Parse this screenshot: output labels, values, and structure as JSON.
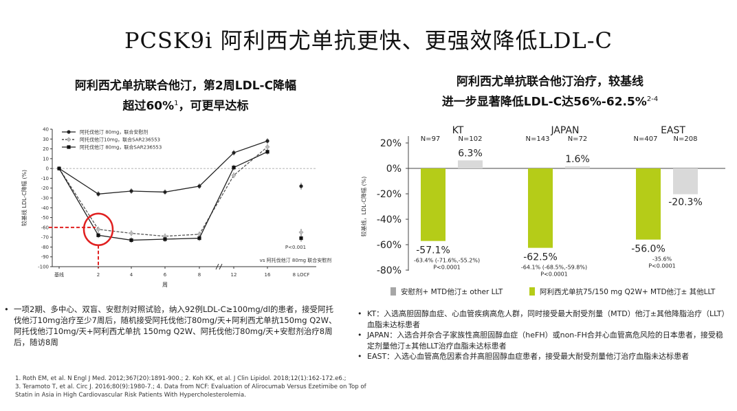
{
  "main_title": "PCSK9i 阿利西尤单抗更快、更强效降低LDL-C",
  "left": {
    "title_line1": "阿利西尤单抗联合他汀，第2周LDL-C降幅",
    "title_line2": "超过60%",
    "title_sup": "1",
    "title_line2_end": "，可更早达标",
    "bullet": "一项2期、多中心、双盲、安慰剂对照试验，纳入92例LDL-C≥100mg/dl的患者，接受阿托伐他汀10mg治疗至少7周后，随机接受阿托伐他汀80mg/天+阿利西尤单抗150mg Q2W、阿托伐他汀10mg/天+阿利西尤单抗 150mg Q2W、阿托伐他汀80mg/天+安慰剂治疗8周后，随访8周"
  },
  "right": {
    "title_line1": "阿利西尤单抗联合他汀治疗，较基线",
    "title_line2": "进一步显著降低LDL-C达56%-62.5%",
    "title_sup": "2-4",
    "bullets": [
      "KT：入选高胆固醇血症、心血管疾病高危人群，同时接受最大耐受剂量（MTD）他汀±其他降脂治疗（LLT）血脂未达标患者",
      "JAPAN：入选合并杂合子家族性高胆固醇血症（heFH）或non-FH合并心血管高危风险的日本患者，接受稳定剂量他汀±其他LLT治疗血脂未达标患者",
      "EAST：入选心血管高危因素合并高胆固醇血症患者，接受最大耐受剂量他汀治疗血脂未达标患者"
    ]
  },
  "references": [
    "1. Roth EM, et al. N Engl J Med. 2012;367(20):1891-900.; 2. Koh KK, et al. J Clin Lipidol. 2018;12(1):162-172.e6.;",
    "3. Teramoto T, et al. Circ J. 2016;80(9):1980-7.;  4. Data from NCF: Evaluation of Alirocumab Versus Ezetimibe on Top of",
    "Statin in Asia in High Cardiovascular Risk Patients With Hypercholesterolemia."
  ],
  "colors": {
    "alirocumab": "#b5cc18",
    "placebo": "#d9d9d9",
    "highlight": "#e02020"
  },
  "chart_data": [
    {
      "type": "line",
      "ylabel": "较基线 LDL-C降幅 (%)",
      "xlabel": "周",
      "ylim": [
        -100,
        40
      ],
      "yticks": [
        40,
        30,
        20,
        10,
        0,
        -10,
        -20,
        -30,
        -40,
        -50,
        -60,
        -70,
        -80,
        -90,
        -100
      ],
      "x": [
        "基线",
        "2",
        "4",
        "6",
        "8",
        "12",
        "16"
      ],
      "x_extra": "8 LOCF",
      "series": [
        {
          "name": "阿托伐他汀 80mg，联合安慰剂",
          "style": "solid-circle",
          "values": [
            0,
            -26,
            -23,
            -24,
            -18,
            16,
            28
          ],
          "locf": -18
        },
        {
          "name": "阿托伐他汀10mg，联合SAR236553",
          "style": "dashed-diamond",
          "values": [
            0,
            -62,
            -66,
            -69,
            -67,
            -7,
            22
          ],
          "locf": -65
        },
        {
          "name": "阿托伐他汀 80mg，联合SAR236553",
          "style": "solid-square",
          "values": [
            0,
            -68,
            -73,
            -72,
            -71,
            1,
            17
          ],
          "locf": -71
        }
      ],
      "annotation_p": "P<0.001",
      "annotation_vs": "vs 阿托伐他汀 80mg 联合安慰剂"
    },
    {
      "type": "bar",
      "ylim": [
        -80,
        20
      ],
      "yticks": [
        "20%",
        "0%",
        "-20%",
        "-40%",
        "-60%",
        "-80%"
      ],
      "ylabel": "较基线，LDL-C降幅 (%)",
      "groups": [
        {
          "name": "KT",
          "n_ali": "N=97",
          "n_pbo": "N=102",
          "ali": -57.1,
          "pbo": 6.3,
          "ali_label": "-57.1%",
          "pbo_label": "6.3%",
          "ci": "-63.4% (-71.6%,-55.2%)",
          "p": "P<0.0001"
        },
        {
          "name": "JAPAN",
          "n_ali": "N=143",
          "n_pbo": "N=72",
          "ali": -62.5,
          "pbo": 1.6,
          "ali_label": "-62.5%",
          "pbo_label": "1.6%",
          "ci": "-64.1% (-68.5%,-59.8%)",
          "p": "P<0.0001"
        },
        {
          "name": "EAST",
          "n_ali": "N=407",
          "n_pbo": "N=208",
          "ali": -56.0,
          "pbo": -20.3,
          "ali_label": "-56.0%",
          "pbo_label": "-20.3%",
          "ci": "-35.6%",
          "p": "P<0.0001"
        }
      ],
      "legend": [
        {
          "name": "安慰剂+ MTD他汀± other LLT",
          "color": "#a6a6a6"
        },
        {
          "name": "阿利西尤单抗75/150 mg Q2W+ MTD他汀± 其他LLT",
          "color": "#b5cc18"
        }
      ]
    }
  ]
}
